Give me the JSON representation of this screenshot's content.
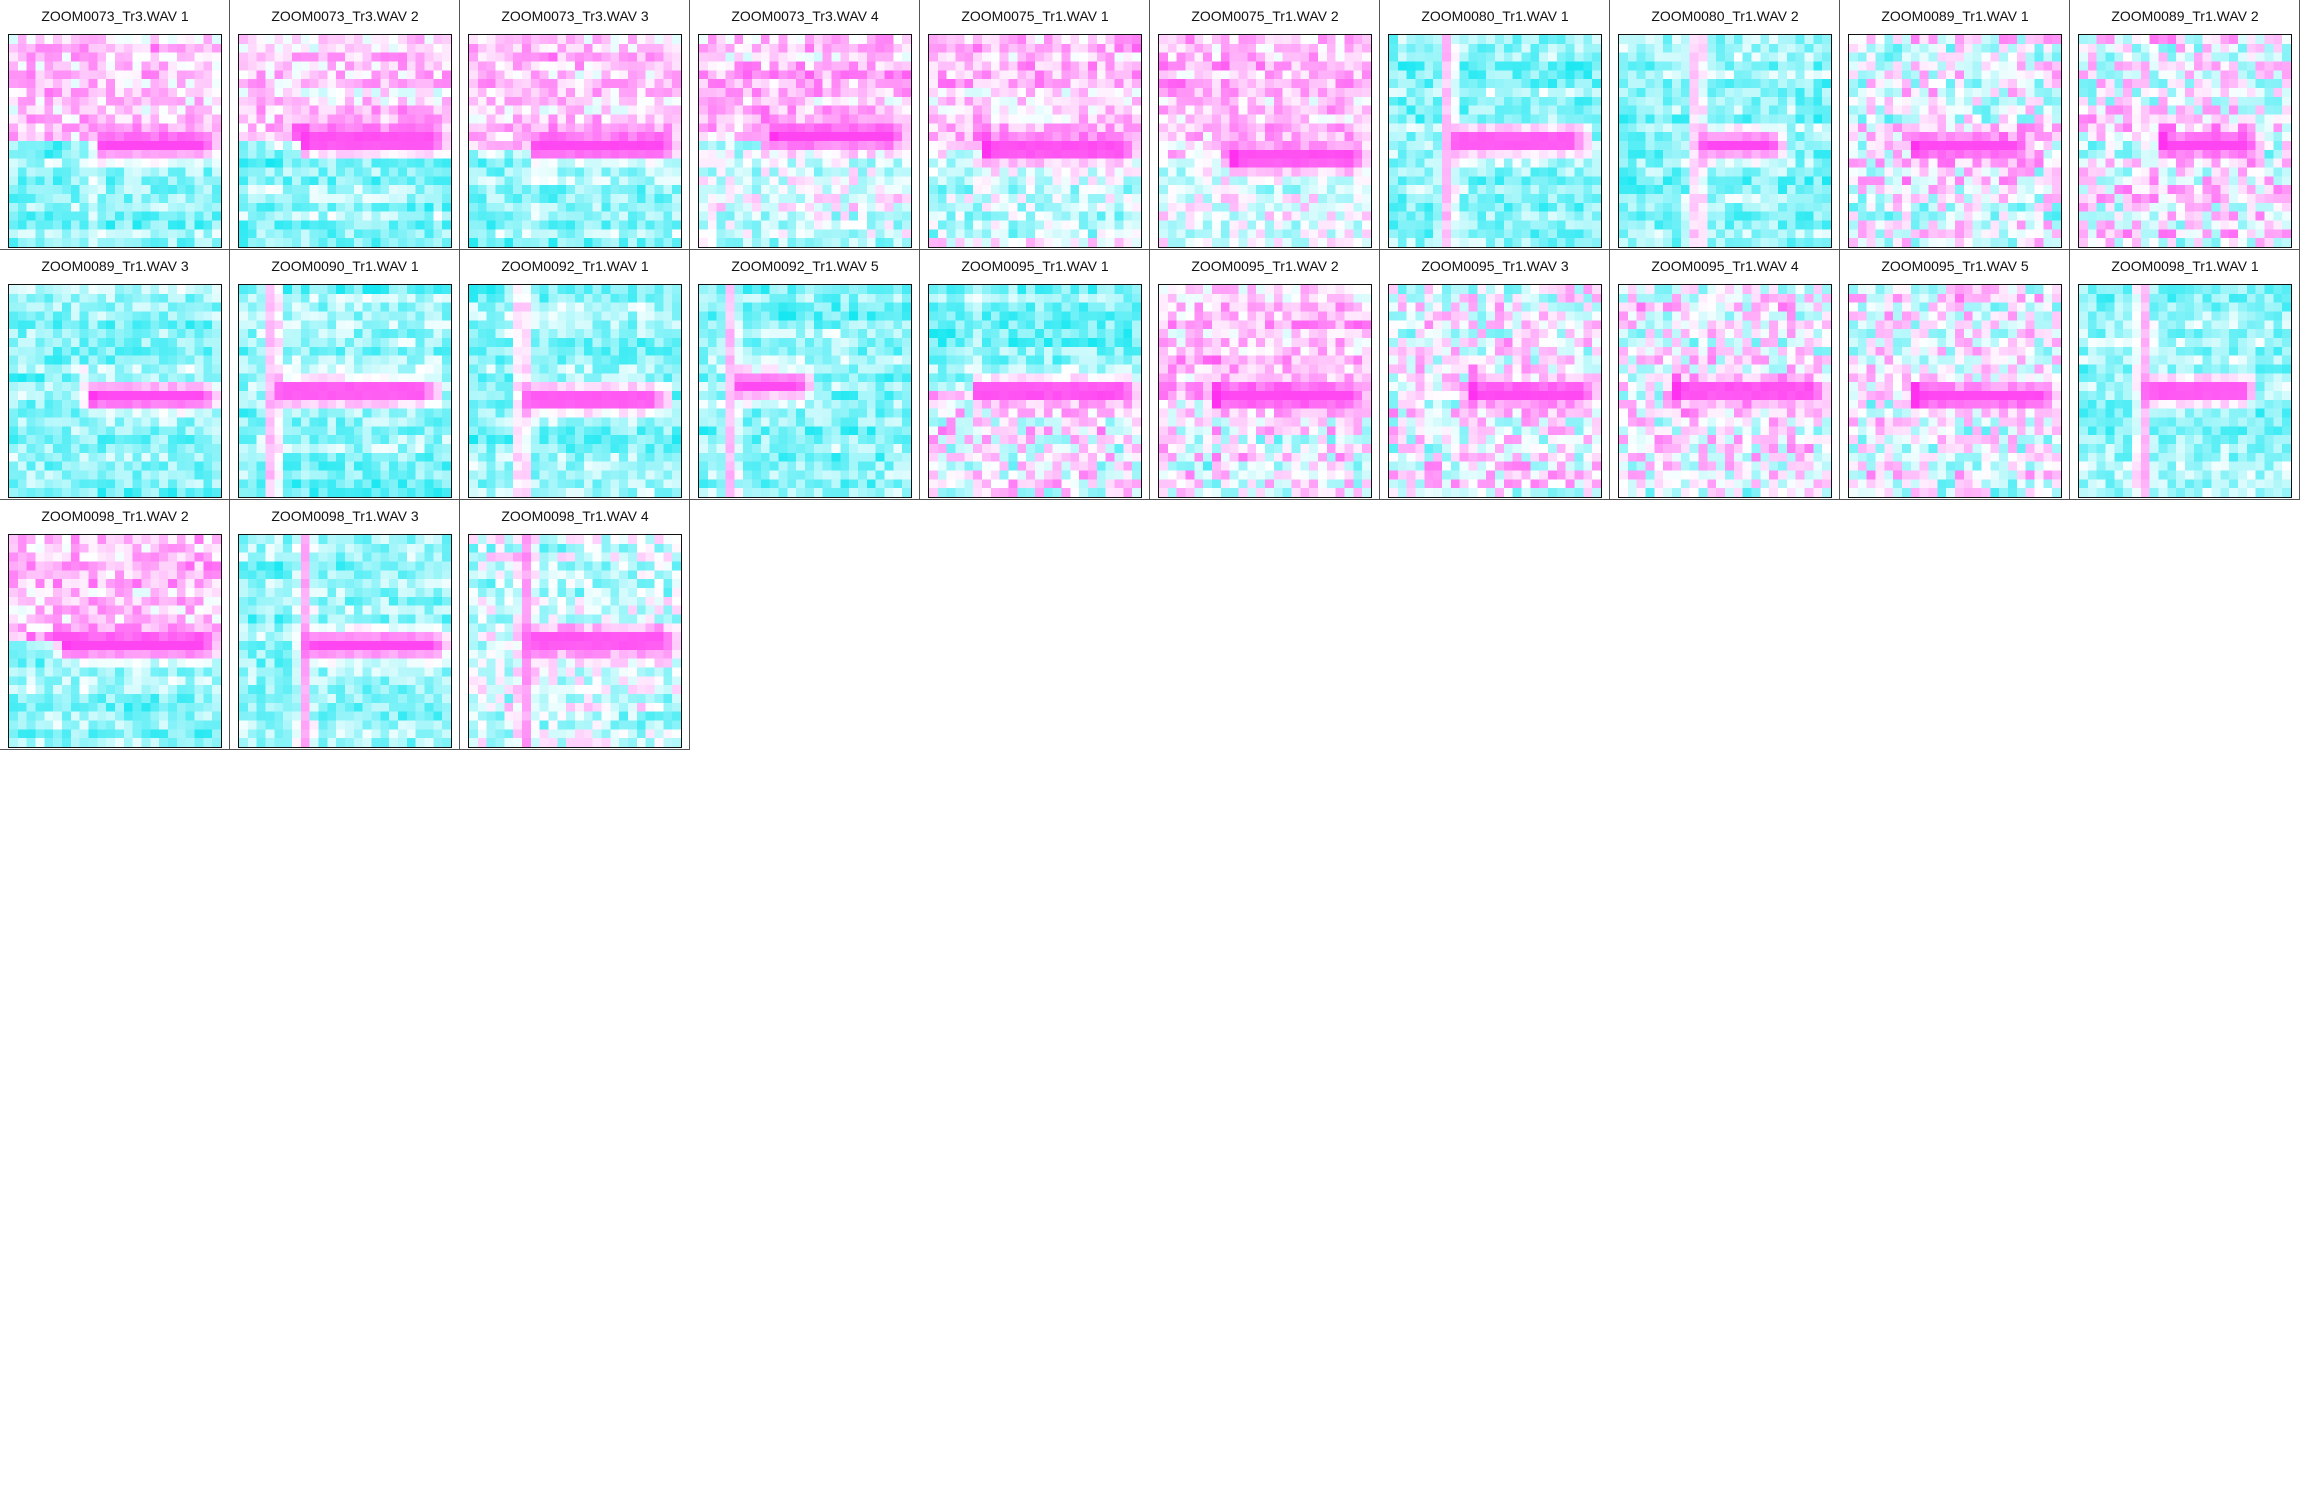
{
  "chart_data": {
    "type": "heatmap",
    "layout": "small-multiples",
    "color_scale": {
      "low": "#00e5f0",
      "mid": "#ffffff",
      "high": "#ff30f0"
    },
    "panels": [
      {
        "title": "ZOOM0073_Tr3.WAV 1",
        "onset": 0.4,
        "end": 1.0,
        "row": 0.52,
        "lower": "cyan",
        "upper": "pink",
        "vert": 0.35
      },
      {
        "title": "ZOOM0073_Tr3.WAV 2",
        "onset": 0.28,
        "end": 1.0,
        "row": 0.5,
        "lower": "cyan",
        "upper": "pink",
        "vert": 0.0
      },
      {
        "title": "ZOOM0073_Tr3.WAV 3",
        "onset": 0.3,
        "end": 1.0,
        "row": 0.53,
        "lower": "cyan",
        "upper": "pink",
        "vert": 0.25
      },
      {
        "title": "ZOOM0073_Tr3.WAV 4",
        "onset": 0.32,
        "end": 1.0,
        "row": 0.48,
        "lower": "light",
        "upper": "pink",
        "vert": 0.0
      },
      {
        "title": "ZOOM0075_Tr1.WAV 1",
        "onset": 0.25,
        "end": 1.0,
        "row": 0.54,
        "lower": "light",
        "upper": "pink",
        "vert": 0.0
      },
      {
        "title": "ZOOM0075_Tr1.WAV 2",
        "onset": 0.33,
        "end": 1.0,
        "row": 0.58,
        "lower": "light",
        "upper": "pink",
        "vert": 0.0
      },
      {
        "title": "ZOOM0080_Tr1.WAV 1",
        "onset": 0.28,
        "end": 0.95,
        "row": 0.5,
        "lower": "cyan",
        "upper": "cyan",
        "vert": 0.9
      },
      {
        "title": "ZOOM0080_Tr1.WAV 2",
        "onset": 0.37,
        "end": 0.8,
        "row": 0.52,
        "lower": "cyan",
        "upper": "cyan",
        "vert": 0.9
      },
      {
        "title": "ZOOM0089_Tr1.WAV 1",
        "onset": 0.28,
        "end": 0.88,
        "row": 0.53,
        "lower": "mixed",
        "upper": "mixed",
        "vert": 0.0
      },
      {
        "title": "ZOOM0089_Tr1.WAV 2",
        "onset": 0.37,
        "end": 0.88,
        "row": 0.52,
        "lower": "mixed",
        "upper": "mixed",
        "vert": 0.0
      },
      {
        "title": "ZOOM0089_Tr1.WAV 3",
        "onset": 0.36,
        "end": 1.0,
        "row": 0.53,
        "lower": "cyan",
        "upper": "cyan",
        "vert": 0.0
      },
      {
        "title": "ZOOM0090_Tr1.WAV 1",
        "onset": 0.16,
        "end": 0.95,
        "row": 0.5,
        "lower": "cyan",
        "upper": "cyan",
        "vert": 0.95
      },
      {
        "title": "ZOOM0092_Tr1.WAV 1",
        "onset": 0.25,
        "end": 0.95,
        "row": 0.54,
        "lower": "cyan",
        "upper": "cyan",
        "vert": 0.9
      },
      {
        "title": "ZOOM0092_Tr1.WAV 5",
        "onset": 0.15,
        "end": 0.55,
        "row": 0.47,
        "lower": "cyan",
        "upper": "cyan",
        "vert": 0.85
      },
      {
        "title": "ZOOM0095_Tr1.WAV 1",
        "onset": 0.22,
        "end": 1.0,
        "row": 0.5,
        "lower": "mixed",
        "upper": "cyan",
        "vert": 0.25
      },
      {
        "title": "ZOOM0095_Tr1.WAV 2",
        "onset": 0.25,
        "end": 1.0,
        "row": 0.53,
        "lower": "mixed",
        "upper": "pink",
        "vert": 0.0
      },
      {
        "title": "ZOOM0095_Tr1.WAV 3",
        "onset": 0.38,
        "end": 1.0,
        "row": 0.51,
        "lower": "mixed",
        "upper": "mixed",
        "vert": 0.0
      },
      {
        "title": "ZOOM0095_Tr1.WAV 4",
        "onset": 0.25,
        "end": 1.0,
        "row": 0.5,
        "lower": "mixed",
        "upper": "mixed",
        "vert": 0.0
      },
      {
        "title": "ZOOM0095_Tr1.WAV 5",
        "onset": 0.3,
        "end": 1.0,
        "row": 0.53,
        "lower": "mixed",
        "upper": "mixed",
        "vert": 0.0
      },
      {
        "title": "ZOOM0098_Tr1.WAV 1",
        "onset": 0.3,
        "end": 0.85,
        "row": 0.5,
        "lower": "cyan",
        "upper": "cyan",
        "vert": 0.95
      },
      {
        "title": "ZOOM0098_Tr1.WAV 2",
        "onset": 0.23,
        "end": 1.0,
        "row": 0.52,
        "lower": "cyan",
        "upper": "pink",
        "vert": 0.0
      },
      {
        "title": "ZOOM0098_Tr1.WAV 3",
        "onset": 0.31,
        "end": 1.0,
        "row": 0.52,
        "lower": "cyan",
        "upper": "cyan",
        "vert": 0.95
      },
      {
        "title": "ZOOM0098_Tr1.WAV 4",
        "onset": 0.27,
        "end": 1.0,
        "row": 0.5,
        "lower": "light",
        "upper": "light",
        "vert": 0.95
      }
    ]
  }
}
